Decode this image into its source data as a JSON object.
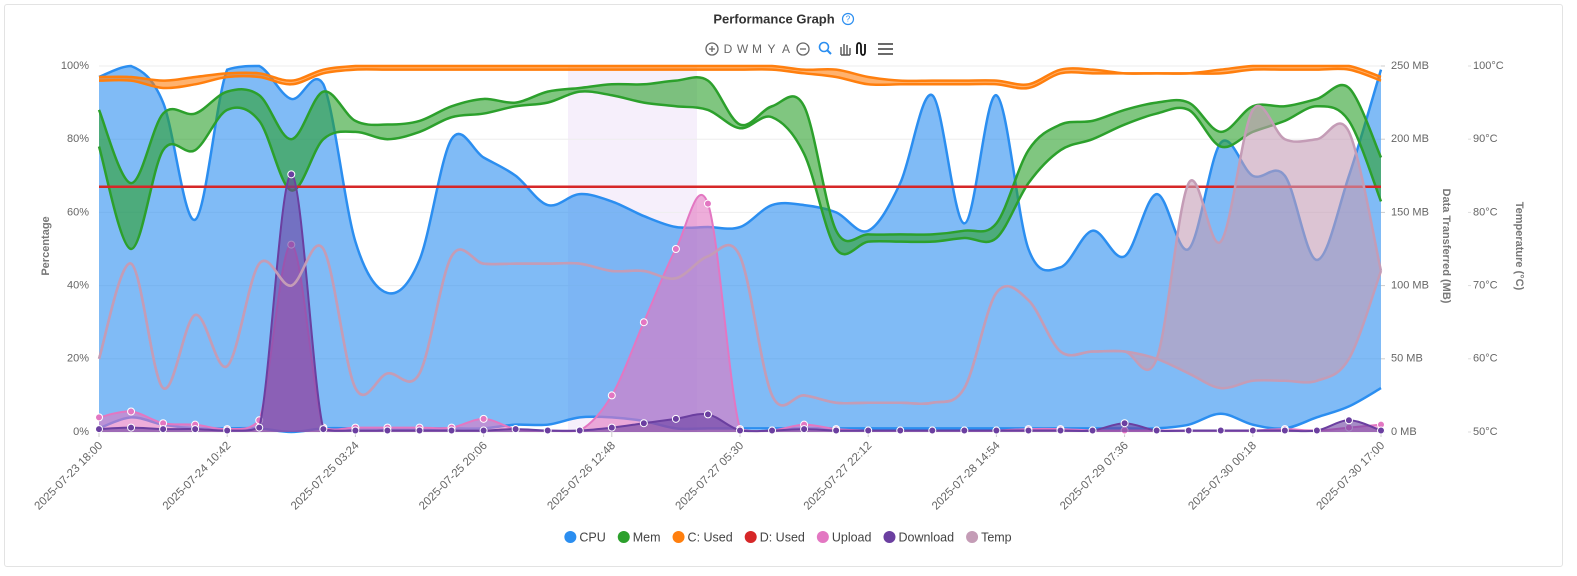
{
  "header": {
    "title": "Performance Graph",
    "toolbar": [
      "D",
      "W",
      "M",
      "Y",
      "A"
    ]
  },
  "chart_data": {
    "type": "area",
    "ylabel": "Percentage",
    "y2label": "Data Transferred (MB)",
    "y3label": "Temperature (°C)",
    "categories": [
      "2025-07-23 18:00",
      null,
      null,
      null,
      "2025-07-24 10:42",
      null,
      null,
      null,
      "2025-07-25 03:24",
      null,
      null,
      null,
      "2025-07-25 20:06",
      null,
      null,
      null,
      "2025-07-26 12:48",
      null,
      null,
      null,
      "2025-07-27 05:30",
      null,
      null,
      null,
      "2025-07-27 22:12",
      null,
      null,
      null,
      "2025-07-28 14:54",
      null,
      null,
      null,
      "2025-07-29 07:36",
      null,
      null,
      null,
      "2025-07-30 00:18",
      null,
      null,
      null,
      "2025-07-30 17:00"
    ],
    "ylim": [
      0,
      100
    ],
    "yticks": [
      {
        "value": 0,
        "label": "0%"
      },
      {
        "value": 20,
        "label": "20%"
      },
      {
        "value": 40,
        "label": "40%"
      },
      {
        "value": 60,
        "label": "60%"
      },
      {
        "value": 80,
        "label": "80%"
      },
      {
        "value": 100,
        "label": "100%"
      }
    ],
    "y2lim": [
      0,
      250
    ],
    "y2ticks": [
      {
        "value": 0,
        "label": "0 MB"
      },
      {
        "value": 50,
        "label": "50 MB"
      },
      {
        "value": 100,
        "label": "100 MB"
      },
      {
        "value": 150,
        "label": "150 MB"
      },
      {
        "value": 200,
        "label": "200 MB"
      },
      {
        "value": 250,
        "label": "250 MB"
      }
    ],
    "y3lim": [
      50,
      100
    ],
    "y3ticks": [
      {
        "value": 50,
        "label": "50°C"
      },
      {
        "value": 60,
        "label": "60°C"
      },
      {
        "value": 70,
        "label": "70°C"
      },
      {
        "value": 80,
        "label": "80°C"
      },
      {
        "value": 90,
        "label": "90°C"
      },
      {
        "value": 100,
        "label": "100°C"
      }
    ],
    "grid": true,
    "series": [
      {
        "name": "CPU",
        "color": "#2b8ef0",
        "values": [
          97,
          100,
          90,
          58,
          99,
          100,
          91,
          95,
          52,
          38,
          47,
          80,
          75,
          70,
          62,
          65,
          63,
          59,
          56,
          56,
          56,
          62,
          62,
          60,
          55,
          68,
          92,
          57,
          92,
          50,
          45,
          55,
          48,
          65,
          50,
          79,
          70,
          70,
          47,
          70,
          99
        ],
        "low": [
          1,
          4,
          2,
          1,
          1,
          1,
          0,
          1,
          1,
          1,
          1,
          1,
          1,
          2,
          2,
          4,
          4,
          3,
          1,
          1,
          1,
          1,
          1,
          1,
          1,
          1,
          1,
          1,
          1,
          1,
          1,
          1,
          1,
          1,
          2,
          5,
          2,
          1,
          4,
          7,
          12
        ]
      },
      {
        "name": "Mem",
        "color": "#2ca02c",
        "values": [
          88,
          68,
          87,
          87,
          93,
          92,
          80,
          93,
          85,
          84,
          85,
          89,
          91,
          90,
          93,
          94,
          95,
          95,
          96,
          96,
          84,
          89,
          89,
          55,
          54,
          54,
          54,
          55,
          57,
          77,
          84,
          85,
          88,
          90,
          90,
          82,
          89,
          89,
          91,
          94,
          75
        ],
        "low": [
          78,
          50,
          77,
          77,
          88,
          85,
          66,
          80,
          82,
          80,
          82,
          86,
          87,
          89,
          90,
          93,
          92,
          90,
          89,
          88,
          83,
          86,
          76,
          50,
          52,
          52,
          52,
          53,
          53,
          68,
          77,
          80,
          84,
          87,
          88,
          78,
          82,
          85,
          89,
          85,
          63
        ]
      },
      {
        "name": "C: Used",
        "color": "#ff7f0e",
        "values": [
          97,
          97,
          96,
          97,
          98,
          98,
          96,
          99,
          100,
          100,
          100,
          100,
          100,
          100,
          100,
          100,
          100,
          100,
          100,
          100,
          100,
          100,
          99,
          99,
          97,
          96,
          96,
          96,
          96,
          95,
          99,
          99,
          98,
          98,
          98,
          99,
          100,
          100,
          100,
          100,
          97
        ],
        "low": [
          96,
          96,
          94,
          95,
          97,
          97,
          95,
          98,
          99,
          99,
          99,
          99,
          99,
          99,
          99,
          99,
          99,
          99,
          99,
          99,
          99,
          99,
          98,
          97,
          95,
          95,
          95,
          95,
          95,
          94,
          98,
          98,
          98,
          98,
          98,
          98,
          99,
          99,
          99,
          99,
          96
        ]
      },
      {
        "name": "D: Used",
        "color": "#d62728",
        "values": [
          67,
          67,
          67,
          67,
          67,
          67,
          67,
          67,
          67,
          67,
          67,
          67,
          67,
          67,
          67,
          67,
          67,
          67,
          67,
          67,
          67,
          67,
          67,
          67,
          67,
          67,
          67,
          67,
          67,
          67,
          67,
          67,
          67,
          67,
          67,
          67,
          67,
          67,
          67,
          67,
          67
        ]
      },
      {
        "name": "Upload",
        "color": "#e377c2",
        "axis": "y2",
        "values": [
          10,
          14,
          6,
          5,
          2,
          8,
          128,
          3,
          3,
          3,
          3,
          3,
          9,
          2,
          1,
          1,
          25,
          75,
          125,
          156,
          2,
          1,
          5,
          2,
          1,
          1,
          1,
          1,
          1,
          2,
          2,
          1,
          1,
          1,
          1,
          1,
          1,
          2,
          1,
          3,
          5
        ]
      },
      {
        "name": "Download",
        "color": "#6b3fa0",
        "axis": "y2",
        "values": [
          2,
          3,
          2,
          2,
          1,
          3,
          176,
          2,
          1,
          1,
          1,
          1,
          1,
          2,
          1,
          1,
          3,
          6,
          9,
          12,
          1,
          1,
          2,
          1,
          1,
          1,
          1,
          1,
          1,
          1,
          1,
          1,
          6,
          1,
          1,
          1,
          1,
          1,
          1,
          8,
          1
        ]
      },
      {
        "name": "Temp",
        "color": "#c49cb6",
        "axis": "y3",
        "values": [
          60,
          73,
          56,
          66,
          59,
          73,
          70,
          75,
          56,
          58,
          58,
          74,
          73,
          73,
          73,
          73,
          72,
          72,
          71,
          74,
          74,
          55,
          55,
          54,
          54,
          54,
          54,
          56,
          69,
          68,
          61,
          61,
          61,
          60,
          84,
          76,
          94,
          90,
          90,
          91,
          72
        ],
        "low": [
          60,
          73,
          56,
          66,
          59,
          73,
          70,
          75,
          56,
          58,
          58,
          74,
          73,
          73,
          73,
          73,
          72,
          72,
          71,
          74,
          74,
          55,
          55,
          54,
          54,
          54,
          54,
          56,
          69,
          68,
          61,
          61,
          61,
          60,
          58,
          56,
          57,
          57,
          57,
          60,
          72
        ]
      }
    ]
  }
}
